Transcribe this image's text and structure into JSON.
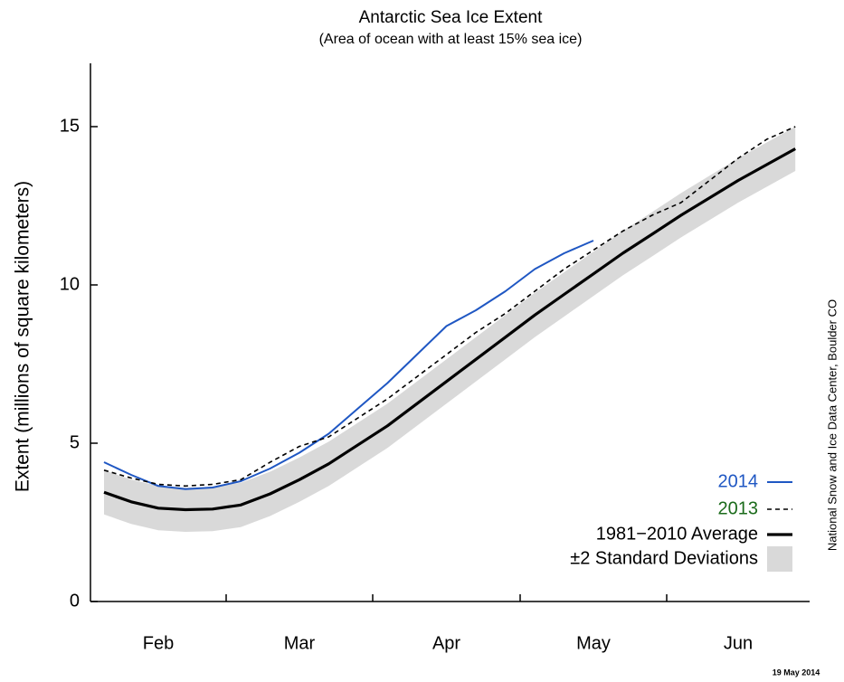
{
  "chart_data": {
    "type": "line",
    "title": "Antarctic Sea Ice Extent",
    "subtitle": "(Area of ocean with at least 15% sea ice)",
    "y_label": "Extent (millions of square kilometers)",
    "source_note": "National Snow and Ice Data Center, Boulder CO",
    "date_note": "19 May 2014",
    "categories": [
      null,
      null,
      "Feb",
      null,
      null,
      null,
      null,
      "Mar",
      null,
      null,
      null,
      null,
      "Apr",
      null,
      null,
      null,
      null,
      "May",
      null,
      null,
      null,
      null,
      "Jun",
      null,
      null
    ],
    "ylim": [
      0,
      17
    ],
    "yticks": [
      0,
      5,
      10,
      15
    ],
    "series": [
      {
        "name": "2014",
        "color": "#1f57c3",
        "label_color": "#1f57c3",
        "dash": "solid",
        "values": [
          4.4,
          4.0,
          3.65,
          3.55,
          3.6,
          3.8,
          4.2,
          4.7,
          5.3,
          6.1,
          6.9,
          7.8,
          8.7,
          9.2,
          9.8,
          10.5,
          11.0,
          11.4,
          null,
          null,
          null,
          null,
          null,
          null,
          null
        ]
      },
      {
        "name": "2013",
        "color": "#000000",
        "label_color": "#1b6b1b",
        "dash": "dashed",
        "values": [
          4.15,
          3.9,
          3.7,
          3.65,
          3.7,
          3.85,
          4.4,
          4.9,
          5.2,
          5.8,
          6.4,
          7.1,
          7.8,
          8.5,
          9.1,
          9.8,
          10.5,
          11.1,
          11.7,
          12.2,
          12.6,
          13.3,
          14.0,
          14.6,
          15.0
        ]
      },
      {
        "name": "1981−2010 Average",
        "color": "#000000",
        "label_color": "#000000",
        "dash": "thick",
        "values": [
          3.45,
          3.15,
          2.95,
          2.9,
          2.92,
          3.05,
          3.4,
          3.85,
          4.35,
          4.95,
          5.55,
          6.25,
          6.95,
          7.65,
          8.35,
          9.05,
          9.7,
          10.35,
          11.0,
          11.6,
          12.2,
          12.75,
          13.3,
          13.8,
          14.3
        ]
      },
      {
        "name": "±2 Standard Deviations",
        "color": "#d9d9d9",
        "label_color": "#000000",
        "dash": "band",
        "values": [
          4.15,
          3.85,
          3.65,
          3.6,
          3.62,
          3.75,
          4.1,
          4.55,
          5.05,
          5.65,
          6.25,
          6.95,
          7.65,
          8.35,
          9.05,
          9.75,
          10.4,
          11.05,
          11.7,
          12.3,
          12.9,
          13.45,
          14.0,
          14.5,
          15.0
        ],
        "lower": [
          2.75,
          2.45,
          2.25,
          2.2,
          2.22,
          2.35,
          2.7,
          3.15,
          3.65,
          4.25,
          4.85,
          5.55,
          6.25,
          6.95,
          7.65,
          8.35,
          9.0,
          9.65,
          10.3,
          10.9,
          11.5,
          12.05,
          12.6,
          13.1,
          13.6
        ]
      }
    ]
  }
}
